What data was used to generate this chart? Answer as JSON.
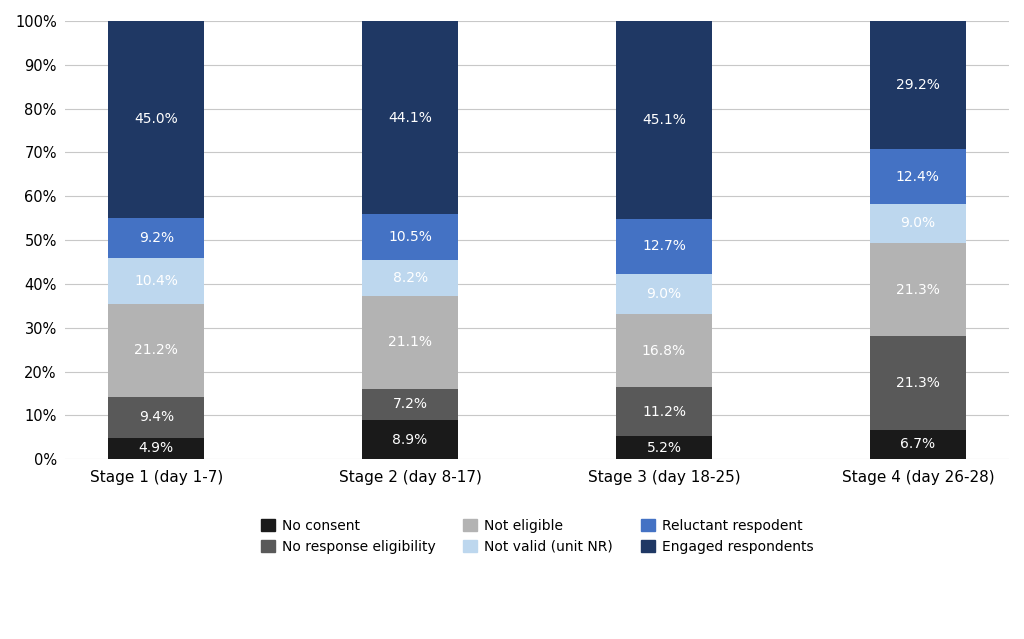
{
  "categories": [
    "Stage 1 (day 1-7)",
    "Stage 2 (day 8-17)",
    "Stage 3 (day 18-25)",
    "Stage 4 (day 26-28)"
  ],
  "series": [
    {
      "label": "No consent",
      "values": [
        4.9,
        8.9,
        5.2,
        6.7
      ],
      "color": "#1a1a1a"
    },
    {
      "label": "No response eligibility",
      "values": [
        9.4,
        7.2,
        11.2,
        21.3
      ],
      "color": "#595959"
    },
    {
      "label": "Not eligible",
      "values": [
        21.2,
        21.1,
        16.8,
        21.3
      ],
      "color": "#b3b3b3"
    },
    {
      "label": "Not valid (unit NR)",
      "values": [
        10.4,
        8.2,
        9.0,
        9.0
      ],
      "color": "#bdd7ee"
    },
    {
      "label": "Reluctant respodent",
      "values": [
        9.2,
        10.5,
        12.7,
        12.4
      ],
      "color": "#4472c4"
    },
    {
      "label": "Engaged respondents",
      "values": [
        45.0,
        44.1,
        45.1,
        29.2
      ],
      "color": "#1f3864"
    }
  ],
  "ylim": [
    0,
    100
  ],
  "yticks": [
    0,
    10,
    20,
    30,
    40,
    50,
    60,
    70,
    80,
    90,
    100
  ],
  "ytick_labels": [
    "0%",
    "10%",
    "20%",
    "30%",
    "40%",
    "50%",
    "60%",
    "70%",
    "80%",
    "90%",
    "100%"
  ],
  "bar_width": 0.38,
  "background_color": "#ffffff",
  "grid_color": "#c8c8c8",
  "label_color": "#ffffff",
  "label_fontsize": 10,
  "legend_fontsize": 10,
  "axis_fontsize": 11,
  "tick_fontsize": 10.5,
  "legend_order": [
    0,
    1,
    2,
    3,
    4,
    5
  ]
}
